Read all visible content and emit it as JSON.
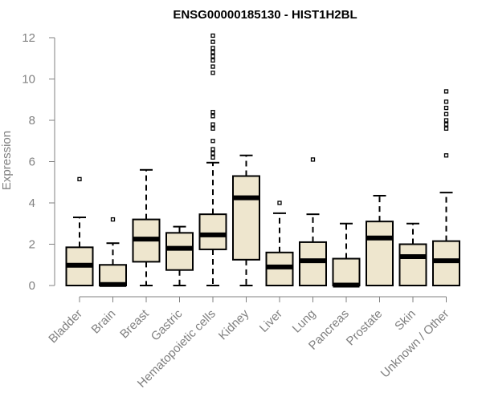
{
  "chart_data": {
    "type": "boxplot",
    "title": "ENSG00000185130 - HIST1H2BL",
    "xlabel": "",
    "ylabel": "Expression",
    "ylim": [
      0,
      12
    ],
    "yticks": [
      0,
      2,
      4,
      6,
      8,
      10,
      12
    ],
    "grid": false,
    "box_fill": "#EEE6CE",
    "categories": [
      "Bladder",
      "Brain",
      "Breast",
      "Gastric",
      "Hematopoietic cells",
      "Kidney",
      "Liver",
      "Lung",
      "Pancreas",
      "Prostate",
      "Skin",
      "Unknown / Other"
    ],
    "boxes": [
      {
        "min": 0,
        "q1": 0,
        "median": 0.98,
        "q3": 1.85,
        "max": 3.3,
        "outliers": [
          5.15
        ]
      },
      {
        "min": 0,
        "q1": 0,
        "median": 0.05,
        "q3": 1.0,
        "max": 2.05,
        "outliers": [
          3.2
        ]
      },
      {
        "min": 0,
        "q1": 1.15,
        "median": 2.25,
        "q3": 3.2,
        "max": 5.6,
        "outliers": []
      },
      {
        "min": 0,
        "q1": 0.75,
        "median": 1.8,
        "q3": 2.55,
        "max": 2.85,
        "outliers": []
      },
      {
        "min": 0,
        "q1": 1.75,
        "median": 2.45,
        "q3": 3.45,
        "max": 5.95,
        "outliers": [
          6.2,
          6.4,
          6.6,
          7.0,
          7.6,
          7.8,
          8.2,
          8.4,
          10.3,
          10.6,
          10.9,
          11.1,
          11.3,
          11.5,
          11.8,
          12.1
        ]
      },
      {
        "min": 0,
        "q1": 1.25,
        "median": 4.25,
        "q3": 5.3,
        "max": 6.3,
        "outliers": []
      },
      {
        "min": 0,
        "q1": 0,
        "median": 0.9,
        "q3": 1.6,
        "max": 3.5,
        "outliers": [
          4.0
        ]
      },
      {
        "min": 0,
        "q1": 0,
        "median": 1.2,
        "q3": 2.1,
        "max": 3.45,
        "outliers": [
          6.1
        ]
      },
      {
        "min": 0,
        "q1": 0,
        "median": 0.02,
        "q3": 1.3,
        "max": 3.0,
        "outliers": []
      },
      {
        "min": 0,
        "q1": 0,
        "median": 2.3,
        "q3": 3.1,
        "max": 4.35,
        "outliers": []
      },
      {
        "min": 0,
        "q1": 0,
        "median": 1.4,
        "q3": 2.0,
        "max": 3.0,
        "outliers": []
      },
      {
        "min": 0,
        "q1": 0,
        "median": 1.2,
        "q3": 2.15,
        "max": 4.5,
        "outliers": [
          6.3,
          7.6,
          7.8,
          8.0,
          8.3,
          8.6,
          8.9,
          9.4
        ]
      }
    ]
  }
}
